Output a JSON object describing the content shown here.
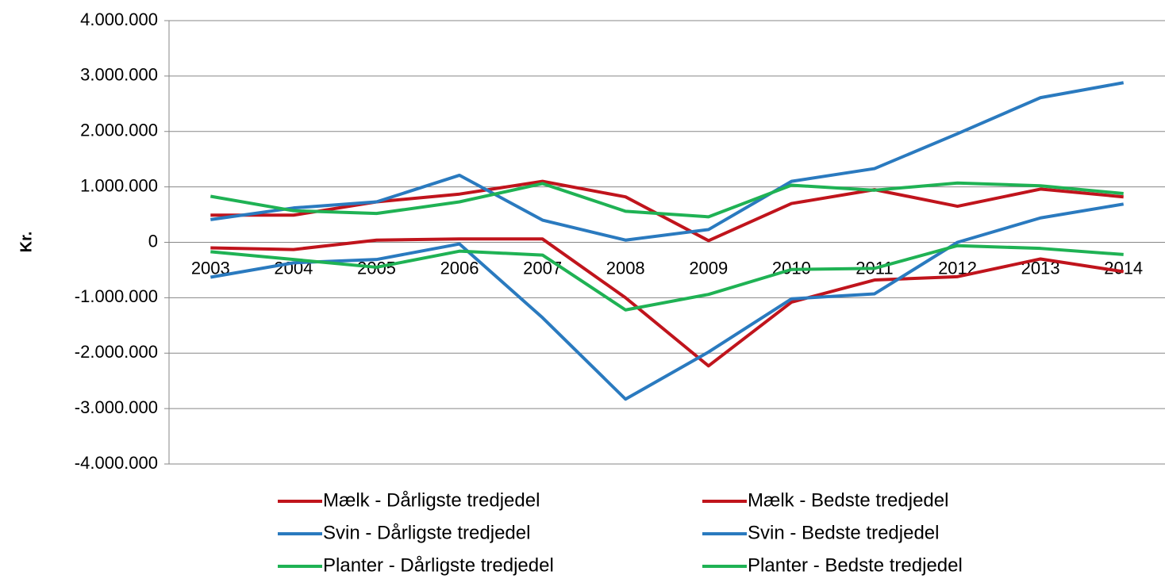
{
  "chart_data": {
    "type": "line",
    "y_label": "Kr.",
    "categories": [
      "2003",
      "2004",
      "2005",
      "2006",
      "2007",
      "2008",
      "2009",
      "2010",
      "2011",
      "2012",
      "2013",
      "2014"
    ],
    "series": [
      {
        "name": "Mælk - Dårligste tredjedel",
        "color": "#c0141c",
        "values": [
          -100000,
          -130000,
          40000,
          60000,
          60000,
          -1000000,
          -2230000,
          -1080000,
          -680000,
          -620000,
          -300000,
          -530000
        ]
      },
      {
        "name": "Mælk - Bedste tredjedel",
        "color": "#c0141c",
        "values": [
          490000,
          490000,
          730000,
          870000,
          1100000,
          820000,
          30000,
          700000,
          950000,
          650000,
          960000,
          820000
        ]
      },
      {
        "name": "Svin - Dårligste tredjedel",
        "color": "#2a7abf",
        "values": [
          -630000,
          -370000,
          -310000,
          -30000,
          -1360000,
          -2830000,
          -1980000,
          -1020000,
          -930000,
          0,
          440000,
          690000
        ]
      },
      {
        "name": "Svin - Bedste tredjedel",
        "color": "#2a7abf",
        "values": [
          410000,
          620000,
          730000,
          1210000,
          400000,
          40000,
          230000,
          1100000,
          1330000,
          1960000,
          2610000,
          2880000
        ]
      },
      {
        "name": "Planter - Dårligste tredjedel",
        "color": "#1fb254",
        "values": [
          -170000,
          -310000,
          -450000,
          -160000,
          -230000,
          -1220000,
          -940000,
          -490000,
          -470000,
          -60000,
          -110000,
          -220000
        ]
      },
      {
        "name": "Planter - Bedste tredjedel",
        "color": "#1fb254",
        "values": [
          830000,
          570000,
          520000,
          730000,
          1060000,
          560000,
          460000,
          1030000,
          940000,
          1070000,
          1020000,
          880000
        ]
      }
    ],
    "ylim": [
      -4000000,
      4000000
    ],
    "yticks": [
      {
        "value": -4000000,
        "label": "-4.000.000"
      },
      {
        "value": -3000000,
        "label": "-3.000.000"
      },
      {
        "value": -2000000,
        "label": "-2.000.000"
      },
      {
        "value": -1000000,
        "label": "-1.000.000"
      },
      0,
      {
        "value": 1000000,
        "label": "1.000.000"
      },
      {
        "value": 2000000,
        "label": "2.000.000"
      },
      {
        "value": 3000000,
        "label": "3.000.000"
      },
      {
        "value": 4000000,
        "label": "4.000.000"
      }
    ],
    "grid": true
  }
}
